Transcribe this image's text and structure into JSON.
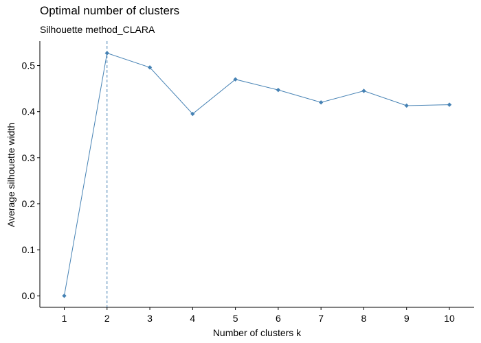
{
  "chart_data": {
    "type": "line",
    "title": "Optimal number of clusters",
    "subtitle": "Silhouette method_CLARA",
    "xlabel": "Number of clusters k",
    "ylabel": "Average silhouette width",
    "categories": [
      "1",
      "2",
      "3",
      "4",
      "5",
      "6",
      "7",
      "8",
      "9",
      "10"
    ],
    "values": [
      0.0,
      0.527,
      0.496,
      0.395,
      0.47,
      0.447,
      0.42,
      0.445,
      0.413,
      0.415
    ],
    "ylim": [
      -0.025,
      0.553
    ],
    "yticks": [
      "0.0",
      "0.1",
      "0.2",
      "0.3",
      "0.4",
      "0.5"
    ],
    "optimal_k": 2,
    "grid": false,
    "colors": {
      "line": "#4682B4",
      "point": "#4682B4",
      "vline": "#4682B4",
      "axis": "#000000"
    }
  }
}
